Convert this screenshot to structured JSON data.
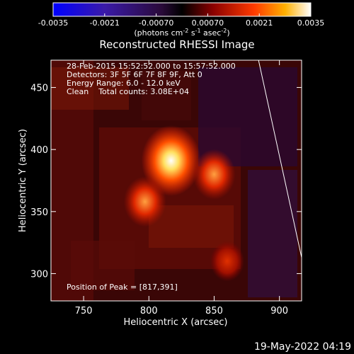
{
  "colorbar": {
    "ticks": [
      "-0.0035",
      "-0.0021",
      "-0.00070",
      "0.00070",
      "0.0021",
      "0.0035"
    ],
    "unit_main": "(photons cm",
    "unit_sup1": "-2",
    "unit_mid1": " s",
    "unit_sup2": "-1",
    "unit_mid2": " asec",
    "unit_sup3": "-2",
    "unit_end": ")",
    "range": [
      -0.0035,
      0.0035
    ]
  },
  "chart_data": {
    "type": "heatmap",
    "title": "Reconstructed RHESSI Image",
    "xlabel": "Heliocentric X (arcsec)",
    "ylabel": "Heliocentric Y (arcsec)",
    "xlim": [
      725,
      917
    ],
    "ylim": [
      278,
      472
    ],
    "x_ticks": [
      750,
      800,
      850,
      900
    ],
    "y_ticks": [
      300,
      350,
      400,
      450
    ],
    "info_lines": [
      "28-Feb-2015 15:52:52.000 to 15:57:52.000",
      "Detectors: 3F 5F 6F 7F 8F 9F, Att 0",
      "Energy Range: 6.0 - 12.0 keV",
      "Clean    Total counts: 3.08E+04"
    ],
    "peak_label": "Position of Peak = [817,391]",
    "peak": [
      817,
      391
    ],
    "sources": [
      {
        "x": 817,
        "y": 391,
        "level": 1.0
      },
      {
        "x": 850,
        "y": 380,
        "level": 0.6
      },
      {
        "x": 797,
        "y": 358,
        "level": 0.6
      },
      {
        "x": 860,
        "y": 310,
        "level": 0.4
      }
    ],
    "limb_line": [
      [
        884,
        472
      ],
      [
        917,
        313
      ]
    ]
  },
  "footer": {
    "date": "19-May-2022 04:19"
  }
}
